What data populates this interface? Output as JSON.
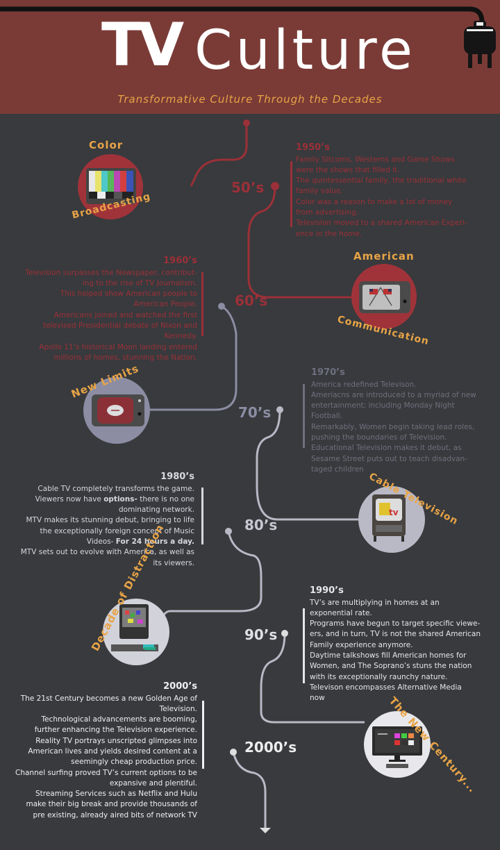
{
  "header": {
    "title_bold": "TV",
    "title_light": "Culture",
    "subtitle": "Transformative Culture Through the Decades"
  },
  "colors": {
    "header_bg": "#7a3b36",
    "background": "#383a3d",
    "accent_gold": "#e8a447",
    "red": "#a0333a",
    "line_grey": "#b9b9c6",
    "text_white": "#e8e8ea"
  },
  "decades": [
    {
      "label": "50’s"
    },
    {
      "label": "60’s"
    },
    {
      "label": "70’s"
    },
    {
      "label": "80’s"
    },
    {
      "label": "90’s"
    },
    {
      "label": "2000’s"
    }
  ],
  "badges": {
    "color": {
      "top": "Color",
      "bottom": "Broadcasting",
      "icon": "color-bars-tv-icon"
    },
    "american": {
      "top": "American",
      "bottom": "Communication",
      "icon": "flag-tv-icon"
    },
    "new_limits": {
      "top": "New Limits",
      "icon": "football-tv-icon"
    },
    "cable": {
      "top": "Cable Television",
      "icon": "mtv-tv-icon"
    },
    "distraction": {
      "top": "Decade of Distraction",
      "icon": "computer-tv-icon"
    },
    "new_century": {
      "top": "The New Century...",
      "icon": "flatscreen-tv-icon"
    }
  },
  "blocks": {
    "b1950": {
      "heading": "1950’s",
      "lines": [
        "Family Sitcoms, Westerns and Game Shows",
        "were the shows that filled it.",
        "The quintessential family, the traditional white",
        "family value.",
        "Color was a reason to make a lot of money",
        "from advertising.",
        "Television moved to a shared American Experi-",
        "ence in the home."
      ]
    },
    "b1960": {
      "heading": "1960’s",
      "lines": [
        "Television surpasses the Newspaper, contribut-",
        "ing to the rise of TV Journalism.",
        "This helped show American people to",
        "American People.",
        "Americans joined and watched the first",
        "televised Presidential debate of Nixon and",
        "Kennedy.",
        "Apollo 11’s historical Moon landing entered",
        "millions of homes, stunning the Nation."
      ]
    },
    "b1970": {
      "heading": "1970’s",
      "lines": [
        "America redefined Televison.",
        "Ameriacns are introduced to a myriad of new",
        "entertainment; including Monday Night",
        "Football.",
        "Remarkably, Women begin taking lead roles,",
        "pushing the boundaries of Television.",
        "Educational Television makes it debut, as",
        "Sesame Street puts out to teach disadvan-",
        "taged children"
      ]
    },
    "b1980": {
      "heading": "1980’s",
      "line1": "Cable TV completely transforms the game.",
      "line2a": "Viewers now have ",
      "line2b": "options-",
      "line2c": " there is no one",
      "line3": "dominating network.",
      "line4": "MTV makes its stunning debut, bringing to life",
      "line5": "the exceptionally foreign concept of Music",
      "line6a": "Videos- ",
      "line6b": "For 24 hours a day.",
      "line7": "MTV sets out to evolve with America, as well as",
      "line8": "its viewers."
    },
    "b1990": {
      "heading": "1990’s",
      "lines": [
        "TV’s are multiplying in homes at an",
        "exponential rate.",
        "Programs have begun to target specific viewe-",
        "ers, and in turn, TV is not the shared American",
        "Family experience anymore.",
        "Daytime talkshows fill American homes for",
        "Women, and The Soprano’s stuns the nation",
        "with its exceptionally raunchy nature.",
        "Televison encompasses Alternative Media",
        "now"
      ]
    },
    "b2000": {
      "heading": "2000’s",
      "lines": [
        "The 21st Century becomes a new Golden Age of",
        "Television.",
        "Technological advancements are booming,",
        "further enhancing the Television experience.",
        "Reality TV portrays unscripted glimpses into",
        "American lives and yields desired content at a",
        "seemingly cheap production price.",
        "Channel surfing proved TV’s current options to be",
        "expansive and plentiful.",
        "Streaming Services such as Netflix and Hulu",
        "make their big break and provide thousands of",
        "pre existing, already aired bits of network TV"
      ]
    }
  }
}
